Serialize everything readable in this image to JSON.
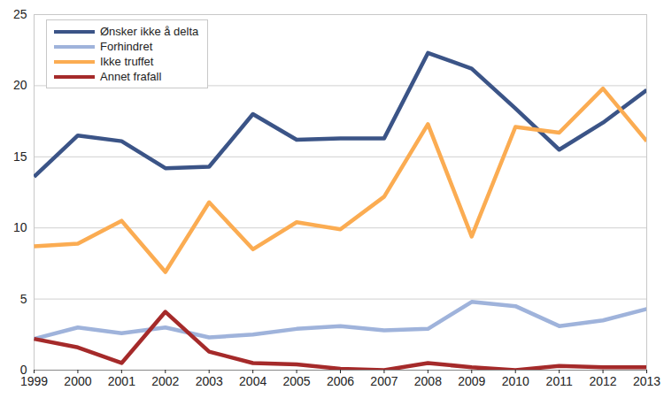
{
  "chart_data": {
    "type": "line",
    "x": [
      1999,
      2000,
      2001,
      2002,
      2003,
      2004,
      2005,
      2006,
      2007,
      2008,
      2009,
      2010,
      2011,
      2012,
      2013
    ],
    "xlim": [
      1999,
      2013
    ],
    "xticks": [
      1999,
      2000,
      2001,
      2002,
      2003,
      2004,
      2005,
      2006,
      2007,
      2008,
      2009,
      2010,
      2011,
      2012,
      2013
    ],
    "ylim": [
      0,
      25
    ],
    "yticks": [
      0,
      5,
      10,
      15,
      20,
      25
    ],
    "grid": true,
    "legend": "top-left",
    "series": [
      {
        "name": "Ønsker ikke å delta",
        "color": "#3b5487",
        "values": [
          13.6,
          16.5,
          16.1,
          14.2,
          14.3,
          18.0,
          16.2,
          16.3,
          16.3,
          22.3,
          21.2,
          18.4,
          15.5,
          17.4,
          19.7
        ]
      },
      {
        "name": "Forhindret",
        "color": "#9fb3db",
        "values": [
          2.2,
          3.0,
          2.6,
          3.0,
          2.3,
          2.5,
          2.9,
          3.1,
          2.8,
          2.9,
          4.8,
          4.5,
          3.1,
          3.5,
          4.3
        ]
      },
      {
        "name": "Ikke truffet",
        "color": "#fbac52",
        "values": [
          8.7,
          8.9,
          10.5,
          6.9,
          11.8,
          8.5,
          10.4,
          9.9,
          12.2,
          17.3,
          9.4,
          17.1,
          16.7,
          19.8,
          16.1
        ]
      },
      {
        "name": "Annet frafall",
        "color": "#a52a2a",
        "values": [
          2.2,
          1.6,
          0.5,
          4.1,
          1.3,
          0.5,
          0.4,
          0.1,
          0.0,
          0.5,
          0.2,
          0.0,
          0.3,
          0.2,
          0.2
        ]
      }
    ]
  }
}
